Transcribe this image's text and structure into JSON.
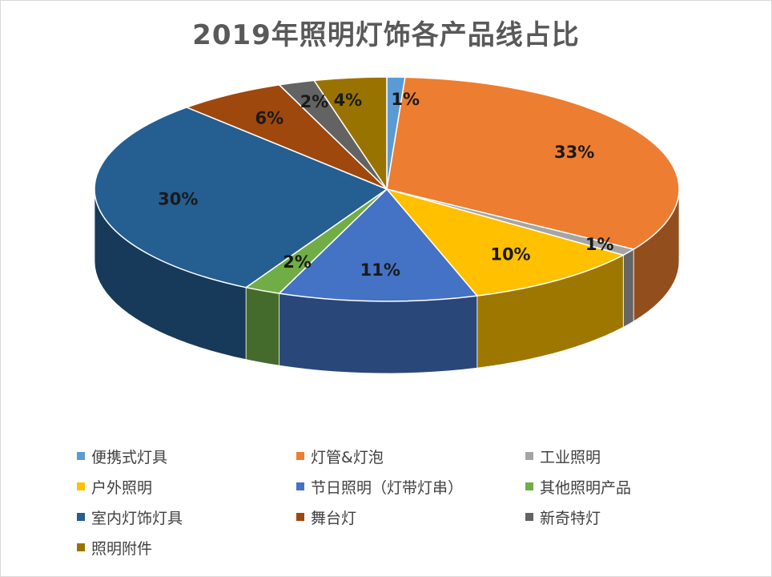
{
  "chart_data": {
    "type": "pie",
    "title": "2019年照明灯饰各产品线占比",
    "categories": [
      "便携式灯具",
      "灯管&灯泡",
      "工业照明",
      "户外照明",
      "节日照明（灯带灯串）",
      "其他照明产品",
      "室内灯饰灯具",
      "舞台灯",
      "新奇特灯",
      "照明附件"
    ],
    "values": [
      1,
      33,
      1,
      10,
      11,
      2,
      30,
      6,
      2,
      4
    ],
    "data_labels": [
      "1%",
      "33%",
      "1%",
      "10%",
      "11%",
      "2%",
      "30%",
      "6%",
      "2%",
      "4%"
    ],
    "colors": [
      "#5b9bd5",
      "#ed7d31",
      "#a5a5a5",
      "#ffc000",
      "#4472c4",
      "#70ad47",
      "#255e91",
      "#9e480e",
      "#636363",
      "#997300"
    ],
    "legend_position": "bottom",
    "style": "3d"
  }
}
